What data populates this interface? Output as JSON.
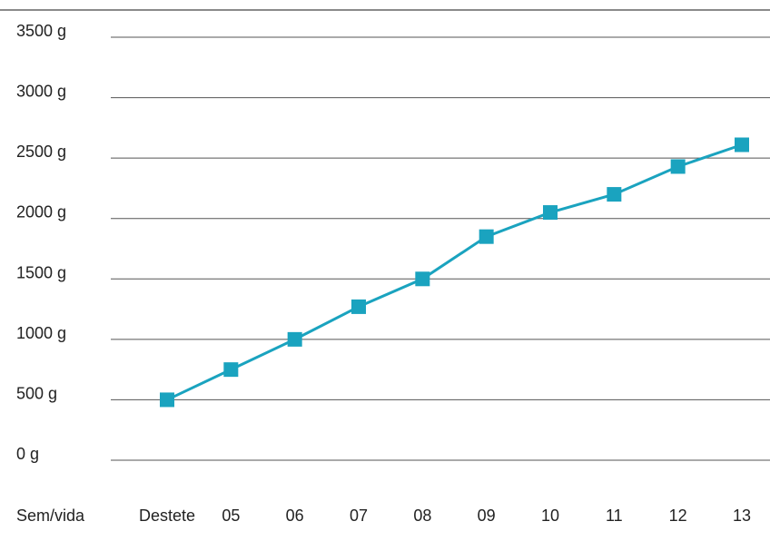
{
  "chart_data": {
    "type": "line",
    "title": "",
    "xlabel": "Sem/vida",
    "ylabel": "",
    "categories": [
      "Destete",
      "05",
      "06",
      "07",
      "08",
      "09",
      "10",
      "11",
      "12",
      "13"
    ],
    "series": [
      {
        "values": [
          500,
          750,
          1000,
          1270,
          1500,
          1850,
          2050,
          2200,
          2430,
          2610
        ]
      }
    ],
    "ylim": [
      0,
      3500
    ],
    "yticks": [
      "0 g",
      "500 g",
      "1000 g",
      "1500 g",
      "2000 g",
      "2500 g",
      "3000 g",
      "3500 g"
    ],
    "grid": true,
    "legend": "none",
    "colors": {
      "series": "#1aa3bf",
      "marker": "#1aa3bf",
      "grid": "#555555",
      "text": "#222222"
    }
  }
}
